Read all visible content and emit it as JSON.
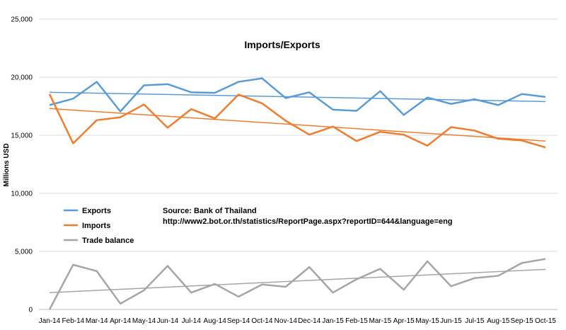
{
  "chart_data": {
    "type": "line",
    "title": "Imports/Exports",
    "xlabel": "",
    "ylabel": "Millions USD",
    "categories": [
      "Jan-14",
      "Feb-14",
      "Mar-14",
      "Apr-14",
      "May-14",
      "Jun-14",
      "Jul-14",
      "Aug-14",
      "Sep-14",
      "Oct-14",
      "Nov-14",
      "Dec-14",
      "Jan-15",
      "Feb-15",
      "Mar-15",
      "Apr-15",
      "May-15",
      "Jun-15",
      "Jul-15",
      "Aug-15",
      "Sep-15",
      "Oct-15"
    ],
    "ylim": [
      0,
      25000
    ],
    "yticks": [
      0,
      5000,
      10000,
      15000,
      20000,
      25000
    ],
    "ytick_labels": [
      "0",
      "5,000",
      "10,000",
      "15,000",
      "20,000",
      "25,000"
    ],
    "grid": true,
    "legend_position": "lower-left",
    "series": [
      {
        "name": "Exports",
        "color": "#5b9bd5",
        "values": [
          17600,
          18150,
          19600,
          17050,
          19300,
          19400,
          18700,
          18650,
          19600,
          19900,
          18200,
          18700,
          17200,
          17100,
          18800,
          16750,
          18250,
          17700,
          18100,
          17600,
          18550,
          18300
        ],
        "trendline": [
          18700,
          17900
        ]
      },
      {
        "name": "Imports",
        "color": "#ed7d31",
        "values": [
          18550,
          14300,
          16300,
          16550,
          17650,
          15650,
          17250,
          16450,
          18500,
          17750,
          16250,
          15050,
          15750,
          14500,
          15300,
          15050,
          14100,
          15700,
          15400,
          14700,
          14550,
          13950
        ],
        "trendline": [
          17300,
          14500
        ]
      },
      {
        "name": "Trade balance",
        "color": "#a5a5a5",
        "values": [
          -950,
          3850,
          3300,
          500,
          1650,
          3750,
          1450,
          2200,
          1100,
          2150,
          1950,
          3650,
          1450,
          2600,
          3500,
          1700,
          4150,
          2000,
          2700,
          2900,
          4000,
          4350
        ],
        "trendline": [
          1450,
          3450
        ]
      }
    ],
    "annotations": [
      "Source: Bank of Thailand",
      "http://www2.bot.or.th/statistics/ReportPage.aspx?reportID=644&language=eng"
    ]
  }
}
